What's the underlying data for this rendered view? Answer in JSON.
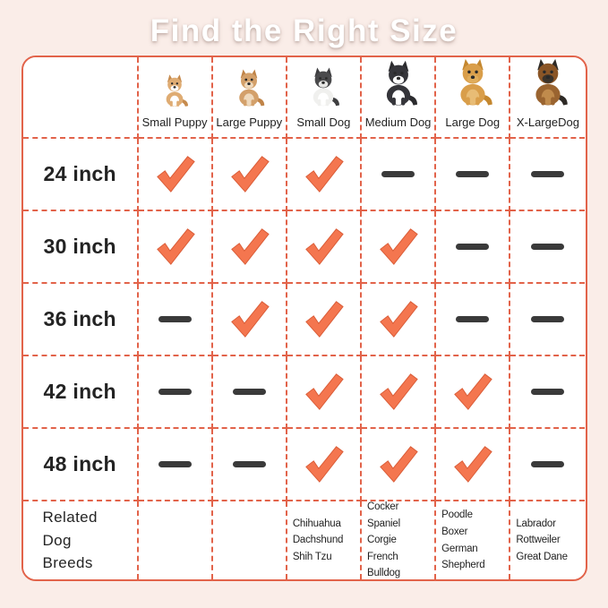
{
  "page": {
    "title": "Find the Right Size"
  },
  "colors": {
    "accent": "#E2634A",
    "check": "#F4764F",
    "check_outline": "#D95B36",
    "dash": "#3A3A3A",
    "background": "#FAEDE8",
    "cell": "#FFFFFF"
  },
  "table": {
    "columns": [
      {
        "label": "Small Puppy",
        "icon": "corgi-puppy-dog-image"
      },
      {
        "label": "Large Puppy",
        "icon": "chihuahua-puppy-dog-image"
      },
      {
        "label": "Small Dog",
        "icon": "french-bulldog-dog-image"
      },
      {
        "label": "Medium Dog",
        "icon": "border-collie-dog-image"
      },
      {
        "label": "Large Dog",
        "icon": "golden-retriever-dog-image"
      },
      {
        "label": "X-LargeDog",
        "icon": "german-shepherd-dog-image"
      }
    ],
    "rows": [
      {
        "label": "24 inch",
        "cells": [
          "check",
          "check",
          "check",
          "dash",
          "dash",
          "dash"
        ]
      },
      {
        "label": "30 inch",
        "cells": [
          "check",
          "check",
          "check",
          "check",
          "dash",
          "dash"
        ]
      },
      {
        "label": "36 inch",
        "cells": [
          "dash",
          "check",
          "check",
          "check",
          "dash",
          "dash"
        ]
      },
      {
        "label": "42 inch",
        "cells": [
          "dash",
          "dash",
          "check",
          "check",
          "check",
          "dash"
        ]
      },
      {
        "label": "48 inch",
        "cells": [
          "dash",
          "dash",
          "check",
          "check",
          "check",
          "dash"
        ]
      }
    ],
    "breeds_row": {
      "label": "Related Dog Breeds",
      "cells": [
        [],
        [],
        [
          "Chihuahua",
          "Dachshund",
          "Shih Tzu"
        ],
        [
          "Cocker Spaniel",
          "Corgie",
          "French Bulldog"
        ],
        [
          "Poodle",
          "Boxer",
          "German Shepherd"
        ],
        [
          "Labrador",
          "Rottweiler",
          "Great Dane"
        ]
      ]
    }
  },
  "chart_data": {
    "type": "table",
    "title": "Find the Right Size",
    "columns": [
      "Small Puppy",
      "Large Puppy",
      "Small Dog",
      "Medium Dog",
      "Large Dog",
      "X-LargeDog"
    ],
    "rows": [
      "24 inch",
      "30 inch",
      "36 inch",
      "42 inch",
      "48 inch"
    ],
    "values": [
      [
        true,
        true,
        true,
        false,
        false,
        false
      ],
      [
        true,
        true,
        true,
        true,
        false,
        false
      ],
      [
        false,
        true,
        true,
        true,
        false,
        false
      ],
      [
        false,
        false,
        true,
        true,
        true,
        false
      ],
      [
        false,
        false,
        true,
        true,
        true,
        false
      ]
    ],
    "related_breeds": {
      "Small Dog": [
        "Chihuahua",
        "Dachshund",
        "Shih Tzu"
      ],
      "Medium Dog": [
        "Cocker Spaniel",
        "Corgie",
        "French Bulldog"
      ],
      "Large Dog": [
        "Poodle",
        "Boxer",
        "German Shepherd"
      ],
      "X-LargeDog": [
        "Labrador",
        "Rottweiler",
        "Great Dane"
      ]
    }
  }
}
